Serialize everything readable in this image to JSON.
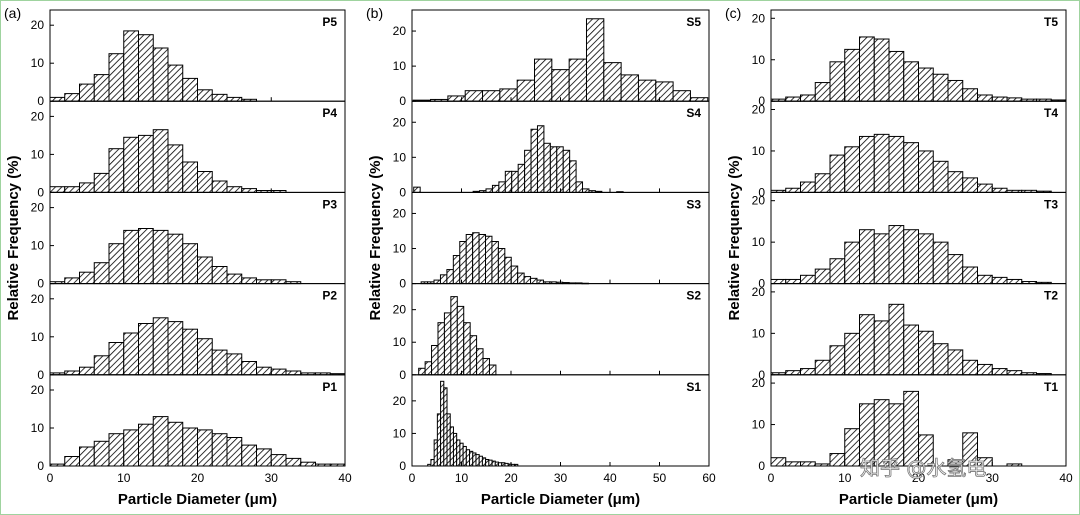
{
  "chart_data": [
    {
      "type": "bar",
      "column_label": "(a)",
      "xlabel": "Particle Diameter (μm)",
      "ylabel": "Relative Frequency (%)",
      "xlim": [
        0,
        40
      ],
      "xticks": [
        0,
        10,
        20,
        30,
        40
      ],
      "bin_width": 2,
      "panels": [
        {
          "name": "P5",
          "ylim": [
            0,
            24
          ],
          "yticks": [
            0,
            10,
            20
          ],
          "x": [
            1,
            3,
            5,
            7,
            9,
            11,
            13,
            15,
            17,
            19,
            21,
            23,
            25,
            27
          ],
          "values": [
            1,
            2,
            4.5,
            7,
            12.5,
            18.5,
            17.5,
            14,
            9.5,
            6,
            3,
            1.8,
            1,
            0.5
          ]
        },
        {
          "name": "P4",
          "ylim": [
            0,
            24
          ],
          "yticks": [
            0,
            10,
            20
          ],
          "x": [
            1,
            3,
            5,
            7,
            9,
            11,
            13,
            15,
            17,
            19,
            21,
            23,
            25,
            27,
            29,
            31
          ],
          "values": [
            1.5,
            1.5,
            2.5,
            5,
            11.5,
            14.5,
            15,
            16.5,
            12.5,
            8,
            5.5,
            3,
            1.5,
            1,
            0.5,
            0.5
          ]
        },
        {
          "name": "P3",
          "ylim": [
            0,
            24
          ],
          "yticks": [
            0,
            10,
            20
          ],
          "x": [
            1,
            3,
            5,
            7,
            9,
            11,
            13,
            15,
            17,
            19,
            21,
            23,
            25,
            27,
            29,
            31,
            33
          ],
          "values": [
            0.5,
            1.5,
            3,
            5.5,
            10.5,
            14,
            14.5,
            14,
            13,
            10.5,
            7,
            4.5,
            2.5,
            1.5,
            1,
            1,
            0.5
          ]
        },
        {
          "name": "P2",
          "ylim": [
            0,
            24
          ],
          "yticks": [
            0,
            10,
            20
          ],
          "x": [
            1,
            3,
            5,
            7,
            9,
            11,
            13,
            15,
            17,
            19,
            21,
            23,
            25,
            27,
            29,
            31,
            33,
            35,
            37,
            39
          ],
          "values": [
            0.5,
            1,
            2,
            5,
            8.5,
            11,
            13.5,
            15,
            14,
            12,
            9.5,
            6.5,
            5.5,
            3.5,
            2,
            1.5,
            1,
            0.5,
            0.5,
            0.3
          ]
        },
        {
          "name": "P1",
          "ylim": [
            0,
            24
          ],
          "yticks": [
            0,
            10,
            20
          ],
          "x": [
            1,
            3,
            5,
            7,
            9,
            11,
            13,
            15,
            17,
            19,
            21,
            23,
            25,
            27,
            29,
            31,
            33,
            35,
            37,
            39
          ],
          "values": [
            0.5,
            2.5,
            5,
            6.5,
            8.5,
            9.5,
            11,
            13,
            11.5,
            10,
            9.5,
            8.5,
            7.5,
            5.5,
            4.5,
            3,
            2,
            1,
            0.5,
            0.5
          ]
        }
      ]
    },
    {
      "type": "bar",
      "column_label": "(b)",
      "xlabel": "Particle Diameter (μm)",
      "ylabel": "Relative Frequency (%)",
      "xlim": [
        0,
        60
      ],
      "xticks": [
        0,
        10,
        20,
        30,
        40,
        50,
        60
      ],
      "panels": [
        {
          "name": "S5",
          "ylim": [
            0,
            26
          ],
          "yticks": [
            0,
            10,
            20
          ],
          "bin_width": 3.5,
          "x": [
            2,
            5.5,
            9,
            12.5,
            16,
            19.5,
            23,
            26.5,
            30,
            33.5,
            37,
            40.5,
            44,
            47.5,
            51,
            54.5,
            58
          ],
          "values": [
            0.3,
            0.5,
            1.5,
            3,
            3,
            3.5,
            6,
            12,
            9,
            12,
            23.5,
            11,
            7.5,
            6,
            5.5,
            3,
            1
          ]
        },
        {
          "name": "S4",
          "ylim": [
            0,
            26
          ],
          "yticks": [
            0,
            10,
            20
          ],
          "bin_width": 1.3,
          "x": [
            1,
            13,
            14.3,
            15.6,
            16.9,
            18.2,
            19.5,
            20.8,
            22.1,
            23.4,
            24.7,
            26,
            27.3,
            28.6,
            29.9,
            31.2,
            32.5,
            33.8,
            35.1,
            36.4,
            37.7,
            42
          ],
          "values": [
            1.5,
            0.3,
            0.5,
            1,
            2,
            3,
            6,
            6,
            8,
            12,
            18,
            19,
            14,
            13,
            13,
            12,
            9,
            3,
            1,
            0.5,
            0.3,
            0.2
          ]
        },
        {
          "name": "S3",
          "ylim": [
            0,
            26
          ],
          "yticks": [
            0,
            10,
            20
          ],
          "bin_width": 1.3,
          "x": [
            2.5,
            3.8,
            5.1,
            6.4,
            7.7,
            9,
            10.3,
            11.6,
            12.9,
            14.2,
            15.5,
            16.8,
            18.1,
            19.4,
            20.7,
            22,
            23.3,
            24.6,
            25.9,
            27.2,
            28.5,
            29.8,
            31.1,
            32.4,
            33.7,
            35
          ],
          "values": [
            0.5,
            0.5,
            1,
            2.5,
            4,
            8,
            12,
            14,
            14.5,
            14,
            13.5,
            12,
            10,
            7.5,
            5,
            3,
            2,
            1.5,
            1,
            0.5,
            0.5,
            0.4,
            0.3,
            0.2,
            0.2,
            0.1
          ]
        },
        {
          "name": "S2",
          "ylim": [
            0,
            28
          ],
          "yticks": [
            0,
            10,
            20
          ],
          "bin_width": 1.3,
          "x": [
            2,
            3.3,
            4.6,
            5.9,
            7.2,
            8.5,
            9.8,
            11.1,
            12.4,
            13.7,
            15,
            16.3
          ],
          "values": [
            2,
            4,
            9,
            16,
            19,
            24,
            21,
            16,
            12,
            8,
            5,
            3
          ]
        },
        {
          "name": "S1",
          "ylim": [
            0,
            28
          ],
          "yticks": [
            0,
            10,
            20
          ],
          "bin_width": 0.65,
          "x": [
            3.5,
            4.15,
            4.8,
            5.45,
            6.1,
            6.75,
            7.4,
            8.05,
            8.7,
            9.35,
            10,
            10.65,
            11.3,
            11.95,
            12.6,
            13.25,
            13.9,
            14.55,
            15.2,
            15.85,
            16.5,
            17.15,
            17.8,
            18.45,
            19.1,
            19.75,
            20.4,
            21.05
          ],
          "values": [
            0.5,
            2,
            8,
            16,
            26,
            24,
            16,
            12,
            10,
            8,
            7,
            6,
            5,
            4.5,
            4,
            3.5,
            3,
            2.5,
            2,
            1.8,
            1.5,
            1.2,
            1,
            1,
            0.8,
            0.6,
            0.5,
            0.5
          ]
        }
      ]
    },
    {
      "type": "bar",
      "column_label": "(c)",
      "xlabel": "Particle Diameter (μm)",
      "ylabel": "Relative Frequency (%)",
      "xlim": [
        0,
        40
      ],
      "xticks": [
        0,
        10,
        20,
        30,
        40
      ],
      "bin_width": 2,
      "panels": [
        {
          "name": "T5",
          "ylim": [
            0,
            22
          ],
          "yticks": [
            0,
            10,
            20
          ],
          "x": [
            1,
            3,
            5,
            7,
            9,
            11,
            13,
            15,
            17,
            19,
            21,
            23,
            25,
            27,
            29,
            31,
            33,
            35,
            37,
            39
          ],
          "values": [
            0.5,
            1,
            1.5,
            4.5,
            9.5,
            12.5,
            15.5,
            15,
            12,
            9.5,
            8,
            6.5,
            5,
            3,
            1.5,
            1,
            0.8,
            0.5,
            0.5,
            0.3
          ]
        },
        {
          "name": "T4",
          "ylim": [
            0,
            22
          ],
          "yticks": [
            0,
            10,
            20
          ],
          "x": [
            1,
            3,
            5,
            7,
            9,
            11,
            13,
            15,
            17,
            19,
            21,
            23,
            25,
            27,
            29,
            31,
            33,
            35,
            37
          ],
          "values": [
            0.5,
            1,
            2.5,
            4.5,
            9,
            11,
            13.5,
            14,
            13.5,
            12,
            10,
            7.5,
            5,
            3.5,
            2,
            1,
            0.5,
            0.5,
            0.3
          ]
        },
        {
          "name": "T3",
          "ylim": [
            0,
            22
          ],
          "yticks": [
            0,
            10,
            20
          ],
          "x": [
            1,
            3,
            5,
            7,
            9,
            11,
            13,
            15,
            17,
            19,
            21,
            23,
            25,
            27,
            29,
            31,
            33,
            35,
            37
          ],
          "values": [
            1,
            1,
            2,
            3.5,
            6,
            10,
            13,
            12,
            14,
            13,
            12,
            10,
            7,
            4,
            2,
            1.5,
            1,
            0.5,
            0.3
          ]
        },
        {
          "name": "T2",
          "ylim": [
            0,
            22
          ],
          "yticks": [
            0,
            10,
            20
          ],
          "x": [
            1,
            3,
            5,
            7,
            9,
            11,
            13,
            15,
            17,
            19,
            21,
            23,
            25,
            27,
            29,
            31,
            33,
            35,
            37
          ],
          "values": [
            0.5,
            1,
            1.5,
            3.5,
            7,
            10,
            14.5,
            13,
            17,
            12,
            10.5,
            7.5,
            6,
            3.5,
            2.5,
            1.5,
            1,
            0.5,
            0.3
          ]
        },
        {
          "name": "T1",
          "ylim": [
            0,
            22
          ],
          "yticks": [
            0,
            10,
            20
          ],
          "x": [
            1,
            3,
            5,
            7,
            9,
            11,
            13,
            15,
            17,
            19,
            21,
            23,
            25,
            27,
            29,
            31,
            33
          ],
          "values": [
            2,
            1,
            1,
            0.5,
            3,
            9,
            15,
            16,
            15,
            18,
            7.5,
            0,
            1.5,
            8,
            2,
            0,
            0.5
          ]
        }
      ]
    }
  ],
  "watermark": {
    "text": "知乎 @水氢电"
  }
}
